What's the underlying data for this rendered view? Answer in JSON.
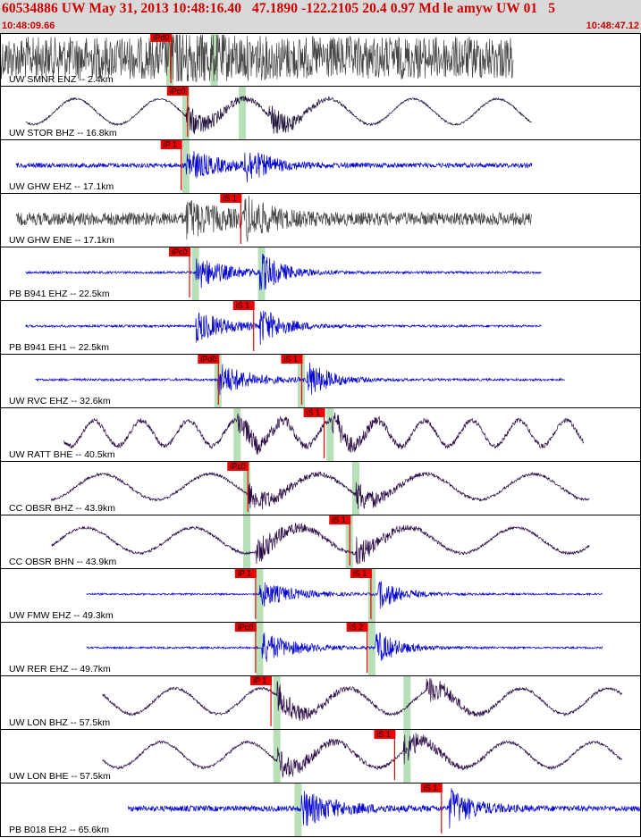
{
  "header": {
    "title": "60534886 UW May 31, 2013 10:48:16.40   47.1890 -122.2105 20.4 0.97 Md le amyw UW 01   5",
    "time_start": "10:48:09.66",
    "time_end": "10:48:47.12"
  },
  "colors": {
    "header_bg": "#d9d9d9",
    "header_text": "#cc0000",
    "pick": "#ee0000",
    "window": "#b8e0b8"
  },
  "traces": [
    {
      "label": "UW SMNR ENZ -- 2.4km",
      "color": "#444444",
      "amp": 0.85,
      "noise": 0.92,
      "freq": 0,
      "t0": 0.0,
      "t1": 0.8,
      "pick": 0.265,
      "s": null,
      "picks": [
        {
          "t": 0.236,
          "text": "iPd0"
        }
      ],
      "greens": [
        0.265,
        0.334
      ]
    },
    {
      "label": "UW STOR BHZ -- 16.8km",
      "color": "#1a0a35",
      "amp": 0.65,
      "noise": 0.04,
      "freq": 6,
      "t0": 0.04,
      "t1": 0.83,
      "pick": 0.29,
      "s": 0.42,
      "picks": [
        {
          "t": 0.262,
          "text": "iPc0"
        }
      ],
      "greens": [
        0.29,
        0.378
      ]
    },
    {
      "label": "UW GHW EHZ -- 17.1km",
      "color": "#0000cc",
      "amp": 0.7,
      "noise": 0.1,
      "freq": 0,
      "t0": 0.025,
      "t1": 0.83,
      "pick": 0.29,
      "s": 0.38,
      "picks": [
        {
          "t": 0.252,
          "text": "iP 1"
        }
      ],
      "greens": [
        0.29
      ]
    },
    {
      "label": "UW GHW ENE -- 17.1km",
      "color": "#444444",
      "amp": 0.75,
      "noise": 0.28,
      "freq": 0,
      "t0": 0.025,
      "t1": 0.83,
      "pick": 0.29,
      "s": 0.382,
      "picks": [
        {
          "t": 0.345,
          "text": "iS 1"
        }
      ],
      "greens": []
    },
    {
      "label": "PB B941 EHZ -- 22.5km",
      "color": "#0000cc",
      "amp": 0.75,
      "noise": 0.05,
      "freq": 0,
      "t0": 0.04,
      "t1": 0.845,
      "pick": 0.305,
      "s": 0.405,
      "picks": [
        {
          "t": 0.265,
          "text": "iPc0"
        }
      ],
      "greens": [
        0.305,
        0.408
      ]
    },
    {
      "label": "PB B941 EH1 -- 22.5km",
      "color": "#0000cc",
      "amp": 0.7,
      "noise": 0.05,
      "freq": 0,
      "t0": 0.04,
      "t1": 0.845,
      "pick": 0.305,
      "s": 0.405,
      "picks": [
        {
          "t": 0.365,
          "text": "iS 1"
        }
      ],
      "greens": []
    },
    {
      "label": "UW RVC EHZ -- 32.6km",
      "color": "#0000cc",
      "amp": 0.75,
      "noise": 0.05,
      "freq": 0,
      "t0": 0.055,
      "t1": 0.88,
      "pick": 0.34,
      "s": 0.478,
      "picks": [
        {
          "t": 0.31,
          "text": "iPd0"
        },
        {
          "t": 0.44,
          "text": "iS 1"
        }
      ],
      "greens": [
        0.34,
        0.47
      ]
    },
    {
      "label": "UW RATT BHE -- 40.5km",
      "color": "#2a0a45",
      "amp": 0.55,
      "noise": 0.1,
      "freq": 11,
      "t0": 0.1,
      "t1": 0.91,
      "pick": 0.37,
      "s": 0.518,
      "picks": [
        {
          "t": 0.475,
          "text": "iS 1"
        }
      ],
      "greens": [
        0.37,
        0.515
      ]
    },
    {
      "label": "CC OBSR BHZ -- 43.9km",
      "color": "#2a0a45",
      "amp": 0.6,
      "noise": 0.06,
      "freq": 5,
      "t0": 0.08,
      "t1": 0.92,
      "pick": 0.385,
      "s": 0.555,
      "picks": [
        {
          "t": 0.356,
          "text": "iPc0"
        }
      ],
      "greens": [
        0.385,
        0.555
      ]
    },
    {
      "label": "CC OBSR BHN -- 43.9km",
      "color": "#2a0a45",
      "amp": 0.6,
      "noise": 0.06,
      "freq": 5,
      "t0": 0.08,
      "t1": 0.92,
      "pick": 0.4,
      "s": 0.555,
      "picks": [
        {
          "t": 0.515,
          "text": "iS 1"
        }
      ],
      "greens": [
        0.385,
        0.545
      ]
    },
    {
      "label": "UW FMW EHZ -- 49.3km",
      "color": "#0000cc",
      "amp": 0.6,
      "noise": 0.04,
      "freq": 0,
      "t0": 0.135,
      "t1": 0.94,
      "pick": 0.405,
      "s": 0.59,
      "picks": [
        {
          "t": 0.368,
          "text": "iP 1"
        },
        {
          "t": 0.548,
          "text": "iS 1"
        }
      ],
      "greens": [
        0.405,
        0.58
      ]
    },
    {
      "label": "UW RER EHZ -- 49.7km",
      "color": "#0000cc",
      "amp": 0.7,
      "noise": 0.04,
      "freq": 0,
      "t0": 0.135,
      "t1": 0.94,
      "pick": 0.408,
      "s": 0.585,
      "picks": [
        {
          "t": 0.368,
          "text": "iPc0"
        },
        {
          "t": 0.542,
          "text": "iS 2"
        }
      ],
      "greens": [
        0.405,
        0.58
      ]
    },
    {
      "label": "UW LON BHZ -- 57.5km",
      "color": "#2a0a45",
      "amp": 0.6,
      "noise": 0.06,
      "freq": 6,
      "t0": 0.16,
      "t1": 0.97,
      "pick": 0.432,
      "s": 0.665,
      "picks": [
        {
          "t": 0.392,
          "text": "iP 1"
        }
      ],
      "greens": [
        0.432,
        0.635
      ]
    },
    {
      "label": "UW LON BHE -- 57.5km",
      "color": "#2a0a45",
      "amp": 0.6,
      "noise": 0.06,
      "freq": 6,
      "t0": 0.16,
      "t1": 0.97,
      "pick": 0.432,
      "s": 0.63,
      "picks": [
        {
          "t": 0.585,
          "text": "iS 1"
        }
      ],
      "greens": [
        0.432,
        0.635
      ]
    },
    {
      "label": "PB B018 EH2 -- 65.6km",
      "color": "#0000cc",
      "amp": 0.8,
      "noise": 0.12,
      "freq": 0,
      "t0": 0.2,
      "t1": 1.0,
      "pick": 0.47,
      "s": 0.7,
      "picks": [
        {
          "t": 0.658,
          "text": "iS 1"
        }
      ],
      "greens": [
        0.465
      ]
    }
  ]
}
